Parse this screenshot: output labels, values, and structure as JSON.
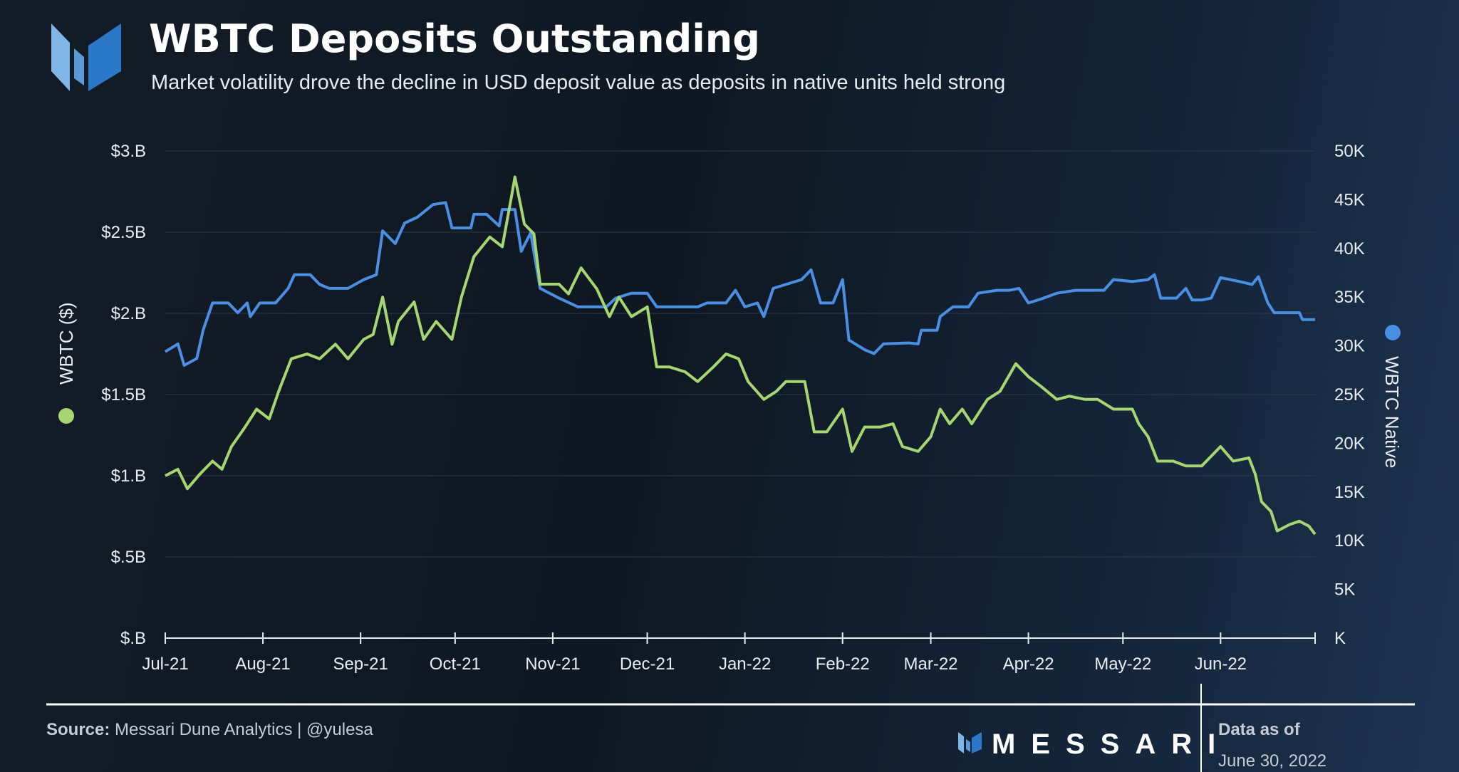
{
  "header": {
    "title": "WBTC Deposits Outstanding",
    "subtitle": "Market volatility drove the decline in USD deposit value as deposits in native units held strong"
  },
  "colors": {
    "usd": "#a6d672",
    "native": "#4a8fe2",
    "grid": "#2c3a4a"
  },
  "chart_data": {
    "type": "line",
    "title": "WBTC Deposits Outstanding",
    "x_unit": "days since 2021-07-01",
    "x_range": [
      0,
      365
    ],
    "x_ticks": [
      {
        "day": 0,
        "label": "Jul-21"
      },
      {
        "day": 31,
        "label": "Aug-21"
      },
      {
        "day": 62,
        "label": "Sep-21"
      },
      {
        "day": 92,
        "label": "Oct-21"
      },
      {
        "day": 123,
        "label": "Nov-21"
      },
      {
        "day": 153,
        "label": "Dec-21"
      },
      {
        "day": 184,
        "label": "Jan-22"
      },
      {
        "day": 215,
        "label": "Feb-22"
      },
      {
        "day": 243,
        "label": "Mar-22"
      },
      {
        "day": 274,
        "label": "Apr-22"
      },
      {
        "day": 304,
        "label": "May-22"
      },
      {
        "day": 335,
        "label": "Jun-22"
      },
      {
        "day": 365,
        "label": ""
      }
    ],
    "y_left": {
      "label": "WBTC ($)",
      "range": [
        0,
        3
      ],
      "ticks": [
        "$.B",
        "$.5B",
        "$1.B",
        "$1.5B",
        "$2.B",
        "$2.5B",
        "$3.B"
      ]
    },
    "y_right": {
      "label": "WBTC Native",
      "range": [
        0,
        50
      ],
      "ticks": [
        "K",
        "5K",
        "10K",
        "15K",
        "20K",
        "25K",
        "30K",
        "35K",
        "40K",
        "45K",
        "50K"
      ]
    },
    "grid": true,
    "series": [
      {
        "name": "WBTC ($)",
        "axis": "left",
        "unit": "USD billions",
        "points": [
          [
            0,
            1.0
          ],
          [
            4,
            1.04
          ],
          [
            7,
            0.92
          ],
          [
            11,
            1.01
          ],
          [
            15,
            1.09
          ],
          [
            18,
            1.04
          ],
          [
            21,
            1.18
          ],
          [
            25,
            1.29
          ],
          [
            29,
            1.41
          ],
          [
            33,
            1.35
          ],
          [
            36,
            1.52
          ],
          [
            40,
            1.72
          ],
          [
            45,
            1.75
          ],
          [
            49,
            1.72
          ],
          [
            54,
            1.81
          ],
          [
            58,
            1.72
          ],
          [
            63,
            1.84
          ],
          [
            66,
            1.87
          ],
          [
            69,
            2.1
          ],
          [
            72,
            1.81
          ],
          [
            74,
            1.95
          ],
          [
            79,
            2.07
          ],
          [
            82,
            1.84
          ],
          [
            86,
            1.95
          ],
          [
            91,
            1.84
          ],
          [
            94,
            2.1
          ],
          [
            98,
            2.35
          ],
          [
            103,
            2.47
          ],
          [
            107,
            2.41
          ],
          [
            110,
            2.73
          ],
          [
            111,
            2.84
          ],
          [
            114,
            2.55
          ],
          [
            117,
            2.49
          ],
          [
            119,
            2.18
          ],
          [
            125,
            2.18
          ],
          [
            128,
            2.12
          ],
          [
            132,
            2.28
          ],
          [
            137,
            2.15
          ],
          [
            141,
            1.98
          ],
          [
            144,
            2.1
          ],
          [
            148,
            1.98
          ],
          [
            153,
            2.04
          ],
          [
            156,
            1.67
          ],
          [
            160,
            1.67
          ],
          [
            165,
            1.64
          ],
          [
            169,
            1.58
          ],
          [
            174,
            1.67
          ],
          [
            178,
            1.75
          ],
          [
            182,
            1.72
          ],
          [
            185,
            1.58
          ],
          [
            190,
            1.47
          ],
          [
            194,
            1.52
          ],
          [
            197,
            1.58
          ],
          [
            203,
            1.58
          ],
          [
            206,
            1.27
          ],
          [
            210,
            1.27
          ],
          [
            215,
            1.41
          ],
          [
            218,
            1.15
          ],
          [
            222,
            1.3
          ],
          [
            227,
            1.3
          ],
          [
            231,
            1.32
          ],
          [
            234,
            1.18
          ],
          [
            239,
            1.15
          ],
          [
            243,
            1.24
          ],
          [
            246,
            1.41
          ],
          [
            249,
            1.32
          ],
          [
            253,
            1.41
          ],
          [
            256,
            1.32
          ],
          [
            261,
            1.47
          ],
          [
            265,
            1.52
          ],
          [
            270,
            1.69
          ],
          [
            274,
            1.61
          ],
          [
            278,
            1.55
          ],
          [
            283,
            1.47
          ],
          [
            287,
            1.49
          ],
          [
            292,
            1.47
          ],
          [
            296,
            1.47
          ],
          [
            301,
            1.41
          ],
          [
            307,
            1.41
          ],
          [
            309,
            1.32
          ],
          [
            312,
            1.24
          ],
          [
            315,
            1.09
          ],
          [
            320,
            1.09
          ],
          [
            324,
            1.06
          ],
          [
            329,
            1.06
          ],
          [
            332,
            1.12
          ],
          [
            335,
            1.18
          ],
          [
            339,
            1.09
          ],
          [
            344,
            1.11
          ],
          [
            346,
            1.01
          ],
          [
            348,
            0.84
          ],
          [
            351,
            0.78
          ],
          [
            353,
            0.66
          ],
          [
            357,
            0.7
          ],
          [
            360,
            0.72
          ],
          [
            363,
            0.69
          ],
          [
            365,
            0.64
          ]
        ]
      },
      {
        "name": "WBTC Native",
        "axis": "right",
        "unit": "thousand BTC",
        "points": [
          [
            0,
            29.4
          ],
          [
            4,
            30.2
          ],
          [
            6,
            28.0
          ],
          [
            10,
            28.7
          ],
          [
            12,
            31.6
          ],
          [
            15,
            34.4
          ],
          [
            20,
            34.4
          ],
          [
            23,
            33.4
          ],
          [
            26,
            34.4
          ],
          [
            27,
            33.0
          ],
          [
            30,
            34.4
          ],
          [
            35,
            34.4
          ],
          [
            39,
            35.9
          ],
          [
            41,
            37.3
          ],
          [
            46,
            37.3
          ],
          [
            49,
            36.3
          ],
          [
            52,
            35.9
          ],
          [
            58,
            35.9
          ],
          [
            63,
            36.8
          ],
          [
            67,
            37.3
          ],
          [
            69,
            41.8
          ],
          [
            73,
            40.5
          ],
          [
            76,
            42.6
          ],
          [
            80,
            43.2
          ],
          [
            85,
            44.5
          ],
          [
            89,
            44.7
          ],
          [
            91,
            42.1
          ],
          [
            97,
            42.1
          ],
          [
            98,
            43.5
          ],
          [
            102,
            43.5
          ],
          [
            106,
            42.3
          ],
          [
            107,
            44.0
          ],
          [
            111,
            44.0
          ],
          [
            113,
            39.7
          ],
          [
            116,
            41.6
          ],
          [
            119,
            35.9
          ],
          [
            125,
            34.9
          ],
          [
            131,
            34.0
          ],
          [
            140,
            34.0
          ],
          [
            143,
            34.9
          ],
          [
            148,
            35.4
          ],
          [
            153,
            35.4
          ],
          [
            156,
            34.0
          ],
          [
            163,
            34.0
          ],
          [
            169,
            34.0
          ],
          [
            172,
            34.4
          ],
          [
            178,
            34.4
          ],
          [
            181,
            35.7
          ],
          [
            184,
            34.0
          ],
          [
            188,
            34.4
          ],
          [
            190,
            33.0
          ],
          [
            193,
            35.9
          ],
          [
            197,
            36.3
          ],
          [
            202,
            36.8
          ],
          [
            205,
            37.8
          ],
          [
            208,
            34.4
          ],
          [
            212,
            34.4
          ],
          [
            215,
            36.8
          ],
          [
            217,
            30.6
          ],
          [
            222,
            29.6
          ],
          [
            225,
            29.2
          ],
          [
            228,
            30.2
          ],
          [
            236,
            30.3
          ],
          [
            239,
            30.2
          ],
          [
            240,
            31.6
          ],
          [
            245,
            31.6
          ],
          [
            246,
            33.0
          ],
          [
            250,
            34.0
          ],
          [
            255,
            34.0
          ],
          [
            258,
            35.4
          ],
          [
            264,
            35.7
          ],
          [
            268,
            35.7
          ],
          [
            271,
            35.9
          ],
          [
            274,
            34.4
          ],
          [
            278,
            34.8
          ],
          [
            283,
            35.4
          ],
          [
            289,
            35.7
          ],
          [
            298,
            35.7
          ],
          [
            301,
            36.8
          ],
          [
            307,
            36.6
          ],
          [
            312,
            36.8
          ],
          [
            314,
            37.3
          ],
          [
            316,
            34.9
          ],
          [
            321,
            34.9
          ],
          [
            324,
            35.9
          ],
          [
            326,
            34.7
          ],
          [
            329,
            34.7
          ],
          [
            332,
            34.9
          ],
          [
            335,
            37.0
          ],
          [
            341,
            36.6
          ],
          [
            345,
            36.3
          ],
          [
            347,
            37.1
          ],
          [
            350,
            34.4
          ],
          [
            352,
            33.4
          ],
          [
            360,
            33.4
          ],
          [
            361,
            32.7
          ],
          [
            365,
            32.7
          ]
        ]
      }
    ]
  },
  "footer": {
    "source_label": "Source:",
    "source_text": " Messari Dune Analytics | @yulesa",
    "brand": "MESSARI",
    "data_as_of_label": "Data as of",
    "data_as_of_date": "June 30, 2022"
  }
}
